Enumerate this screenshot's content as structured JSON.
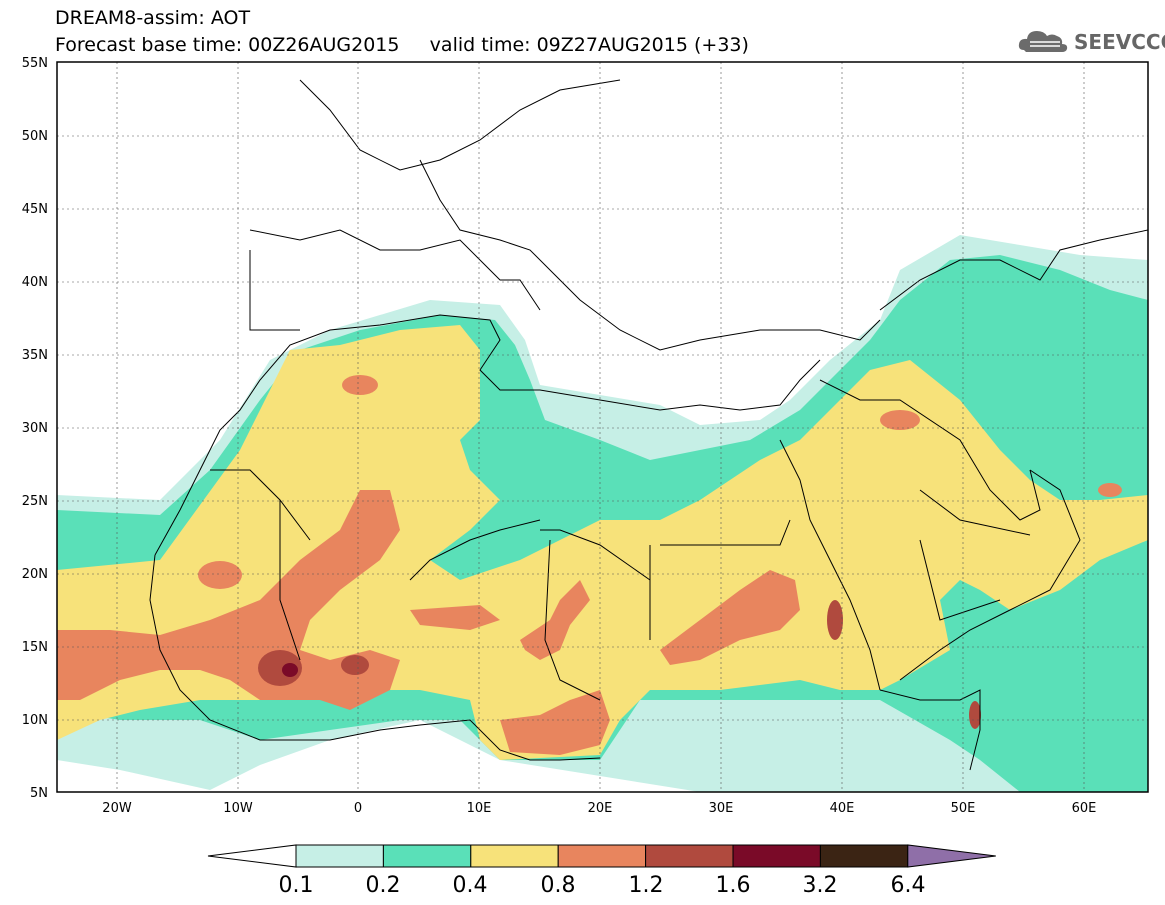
{
  "header": {
    "title_line1": "DREAM8-assim: AOT",
    "title_line2": "Forecast base time: 00Z26AUG2015     valid time: 09Z27AUG2015 (+33)",
    "logo_text": "SEEVCCC",
    "logo_icon": "cloud-icon"
  },
  "map": {
    "lon_range": [
      -25,
      65
    ],
    "lat_range": [
      5,
      55
    ],
    "lat_ticks": [
      "55N",
      "50N",
      "45N",
      "40N",
      "35N",
      "30N",
      "25N",
      "20N",
      "15N",
      "10N",
      "5N"
    ],
    "lon_ticks": [
      "20W",
      "10W",
      "0",
      "10E",
      "20E",
      "30E",
      "40E",
      "50E",
      "60E"
    ]
  },
  "colorbar": {
    "labels": [
      "0.1",
      "0.2",
      "0.4",
      "0.8",
      "1.2",
      "1.6",
      "3.2",
      "6.4"
    ],
    "colors": [
      "#ffffff",
      "#c6efe6",
      "#5ae0b8",
      "#f7e27a",
      "#e8855e",
      "#b04a3e",
      "#7a0a28",
      "#3b2414",
      "#8f6fa8"
    ]
  }
}
